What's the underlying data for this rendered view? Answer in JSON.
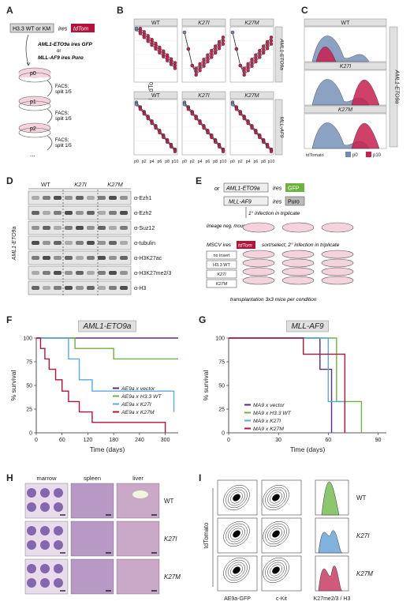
{
  "panels": {
    "A": {
      "letter": "A",
      "vector_label": "H3.3 WT or KM",
      "ires": "ires",
      "tdtom": "tdTom",
      "construct1": "AML1-ETO9a ires GFP",
      "or": "or",
      "construct2": "MLL-AF9 ires Puro",
      "passages": [
        "p0",
        "p1",
        "p2",
        "..."
      ],
      "facs_steps": [
        "FACS;",
        "FACS;",
        "FACS;"
      ],
      "split_label": "split 1/5"
    },
    "B": {
      "letter": "B",
      "ylabel": "% tdTomato pos.",
      "col_titles": [
        "WT",
        "K27I",
        "K27M"
      ],
      "row_titles": [
        "AML1-ETO9a",
        "MLL-AF9"
      ],
      "xticks": [
        "p0",
        "p2",
        "p4",
        "p6",
        "p8",
        "p10"
      ]
    },
    "C": {
      "letter": "C",
      "col_titles": [
        "WT",
        "K27I",
        "K27M"
      ],
      "row_title": "AML1-ETO9a",
      "xlabel": "tdTomato",
      "legend": [
        {
          "label": "p0",
          "color": "#6f8bb3"
        },
        {
          "label": "p10",
          "color": "#c8204f"
        }
      ]
    },
    "D": {
      "letter": "D",
      "groups": [
        "WT",
        "K27I",
        "K27M"
      ],
      "side_label": "AML1-ETO9a",
      "blots": [
        "α-Ezh1",
        "α-Ezh2",
        "α-Suz12",
        "α-tubulin",
        "α-H3K27ac",
        "α-H3K27me2/3",
        "α-H3"
      ]
    },
    "E": {
      "letter": "E",
      "or": "or",
      "construct1": "AML1-ETO9a",
      "construct2": "MLL-AF9",
      "ires": "ires",
      "gfp": "GFP",
      "puro": "Puro",
      "first_infection": "1° infection in triplicate",
      "bm_label": "lineage neg. mouse BM",
      "mscv": "MSCV ires",
      "tdtom": "tdTom",
      "sort_label": "sort/select; 2° infection in triplicate",
      "conditions": [
        "no insert",
        "H3.3 WT",
        "K27I",
        "K27M"
      ],
      "transplant": "transplantation 3x3 mice per condition"
    },
    "F": {
      "letter": "F",
      "title": "AML1-ETO9a"
    },
    "G": {
      "letter": "G",
      "title": "MLL-AF9"
    },
    "H": {
      "letter": "H",
      "columns": [
        "marrow",
        "spleen",
        "liver"
      ],
      "rows": [
        "WT",
        "K27I",
        "K27M"
      ]
    },
    "I": {
      "letter": "I",
      "ylabel": "tdTomato",
      "xlabels": [
        "AE9a-GFP",
        "c-Kit",
        "K27me2/3 / H3"
      ],
      "rows": [
        "WT",
        "K27I",
        "K27M"
      ]
    }
  },
  "chart_data": [
    {
      "type": "line",
      "panel": "F",
      "title": "AML1-ETO9a",
      "xlabel": "Time (days)",
      "ylabel": "% survival",
      "xticks": [
        0,
        60,
        120,
        180,
        240,
        300
      ],
      "yticks": [
        0,
        25,
        50,
        75,
        100
      ],
      "xlim": [
        0,
        330
      ],
      "ylim": [
        0,
        100
      ],
      "legend_position": "center-right",
      "series": [
        {
          "name": "AE9a x vector",
          "color": "#5b2a86",
          "x": [
            0,
            330
          ],
          "y": [
            100,
            100
          ]
        },
        {
          "name": "AE9a x H3.3 WT",
          "color": "#6db33f",
          "x": [
            0,
            90,
            90,
            180,
            180,
            330
          ],
          "y": [
            100,
            100,
            89,
            89,
            78,
            78
          ]
        },
        {
          "name": "AE9a x K27I",
          "color": "#5ba9e0",
          "x": [
            0,
            75,
            75,
            100,
            100,
            130,
            130,
            320,
            320
          ],
          "y": [
            100,
            100,
            78,
            78,
            56,
            56,
            44,
            44,
            22
          ]
        },
        {
          "name": "AE9a x K27M",
          "color": "#b5123a",
          "x": [
            0,
            10,
            10,
            20,
            20,
            30,
            30,
            45,
            45,
            60,
            60,
            75,
            75,
            100,
            100,
            130,
            130,
            150,
            150,
            300,
            300
          ],
          "y": [
            100,
            100,
            89,
            89,
            78,
            78,
            67,
            67,
            56,
            56,
            44,
            44,
            33,
            33,
            22,
            22,
            11,
            11,
            11,
            11,
            0
          ]
        }
      ]
    },
    {
      "type": "line",
      "panel": "G",
      "title": "MLL-AF9",
      "xlabel": "Time (days)",
      "ylabel": "% survival",
      "xticks": [
        0,
        30,
        60,
        90
      ],
      "yticks": [
        0,
        25,
        50,
        75,
        100
      ],
      "xlim": [
        0,
        95
      ],
      "ylim": [
        0,
        100
      ],
      "legend_position": "bottom-left",
      "series": [
        {
          "name": "MA9 x vector",
          "color": "#5b2a86",
          "x": [
            0,
            55,
            55,
            62,
            62
          ],
          "y": [
            100,
            100,
            67,
            67,
            0
          ]
        },
        {
          "name": "MA9 x H3.3 WT",
          "color": "#6db33f",
          "x": [
            0,
            65,
            65,
            80,
            80
          ],
          "y": [
            100,
            100,
            33,
            33,
            0
          ]
        },
        {
          "name": "MA9 x K27I",
          "color": "#5ba9e0",
          "x": [
            0,
            60,
            60,
            70,
            70
          ],
          "y": [
            100,
            100,
            33,
            33,
            0
          ]
        },
        {
          "name": "MA9 x K27M",
          "color": "#b5123a",
          "x": [
            0,
            45,
            45,
            70,
            70
          ],
          "y": [
            100,
            100,
            83,
            83,
            0
          ]
        }
      ]
    }
  ]
}
